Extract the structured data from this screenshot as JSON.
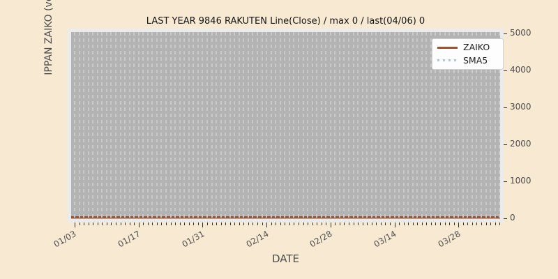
{
  "figure": {
    "background_color": "#f8e9d2",
    "plot_background_color": "#b3b3b3"
  },
  "chart_data": {
    "type": "line",
    "title": "LAST YEAR 9846 RAKUTEN Line(Close) / max 0 / last(04/06) 0",
    "xlabel": "DATE",
    "ylabel": "IPPAN ZAIKO (volume)",
    "ylim": [
      0,
      5000
    ],
    "yticks": [
      0,
      1000,
      2000,
      3000,
      4000,
      5000
    ],
    "xticks": [
      "01/03",
      "01/17",
      "01/31",
      "02/14",
      "02/28",
      "03/14",
      "03/28"
    ],
    "x_start": "01/03",
    "x_end": "04/06",
    "num_days": 94,
    "major_tick_interval_days": 14,
    "grid": {
      "axis": "x",
      "style": "dashed",
      "color": "#c9c9c9"
    },
    "legend_position": "upper right",
    "max_value": 0,
    "last": {
      "date": "04/06",
      "value": 0
    },
    "series": [
      {
        "name": "ZAIKO",
        "line_style": "solid",
        "color": "#a0522d",
        "constant_value": 0,
        "points": [
          [
            "01/03",
            0
          ],
          [
            "01/17",
            0
          ],
          [
            "01/31",
            0
          ],
          [
            "02/14",
            0
          ],
          [
            "02/28",
            0
          ],
          [
            "03/14",
            0
          ],
          [
            "03/28",
            0
          ],
          [
            "04/06",
            0
          ]
        ]
      },
      {
        "name": "SMA5",
        "line_style": "dotted",
        "color": "#a9c8e1",
        "constant_value": 0,
        "points": [
          [
            "01/03",
            0
          ],
          [
            "01/17",
            0
          ],
          [
            "01/31",
            0
          ],
          [
            "02/14",
            0
          ],
          [
            "02/28",
            0
          ],
          [
            "03/14",
            0
          ],
          [
            "03/28",
            0
          ],
          [
            "04/06",
            0
          ]
        ]
      }
    ]
  },
  "legend": {
    "items": [
      {
        "label": "ZAIKO",
        "sample": "solid-line",
        "color": "#a0522d"
      },
      {
        "label": "SMA5",
        "sample": "dotted-line",
        "color": "#a9c8e1"
      }
    ]
  }
}
